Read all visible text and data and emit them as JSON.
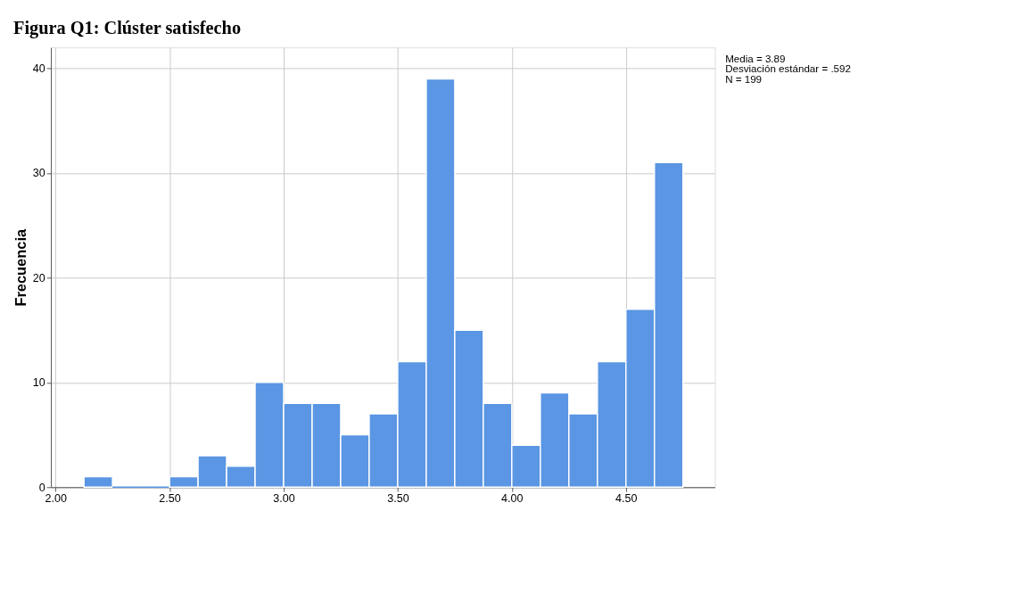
{
  "chart_data": {
    "type": "histogram",
    "title": "Figura Q1: Clúster satisfecho",
    "ylabel": "Frecuencia",
    "bins": [
      2.125,
      2.25,
      2.375,
      2.5,
      2.625,
      2.75,
      2.875,
      3.0,
      3.125,
      3.25,
      3.375,
      3.5,
      3.625,
      3.75,
      3.875,
      4.0,
      4.125,
      4.25,
      4.375,
      4.5,
      4.625,
      4.75
    ],
    "values": [
      1,
      0,
      0,
      1,
      3,
      2,
      10,
      8,
      8,
      5,
      7,
      12,
      39,
      15,
      8,
      4,
      9,
      7,
      12,
      17,
      31
    ],
    "color": "#5a96e3",
    "xlim": [
      1.98,
      4.89
    ],
    "ylim": [
      0,
      42
    ],
    "xticks": [
      {
        "value": 2.0,
        "label": "2.00"
      },
      {
        "value": 2.5,
        "label": "2.50"
      },
      {
        "value": 3.0,
        "label": "3.00"
      },
      {
        "value": 3.5,
        "label": "3.50"
      },
      {
        "value": 4.0,
        "label": "4.00"
      },
      {
        "value": 4.5,
        "label": "4.50"
      }
    ],
    "yticks": [
      0,
      10,
      20,
      30,
      40
    ],
    "grid": true,
    "annotations": [
      "Media = 3.89",
      "Desviación estándar = .592",
      "N = 199"
    ]
  }
}
